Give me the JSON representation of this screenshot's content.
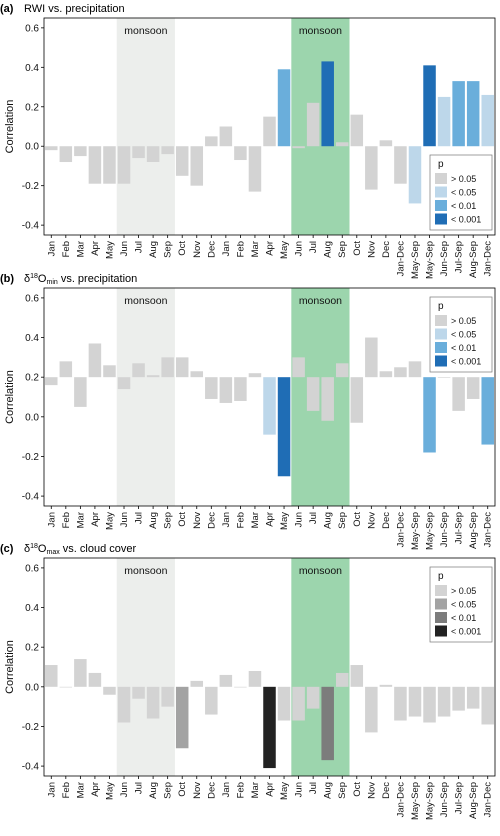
{
  "figure": {
    "panels_text": [
      "(a)",
      "(b)",
      "(c)"
    ]
  },
  "chart_data": [
    {
      "type": "bar",
      "panel_label": "(a)",
      "title": "RWI vs. precipitation",
      "ylabel": "Correlation",
      "ylim": [
        -0.45,
        0.65
      ],
      "yticks": [
        -0.4,
        -0.2,
        0.0,
        0.2,
        0.4,
        0.6
      ],
      "baseline": 0,
      "categories": [
        "Jan",
        "Feb",
        "Mar",
        "Apr",
        "May",
        "Jun",
        "Jul",
        "Aug",
        "Sep",
        "Oct",
        "Nov",
        "Dec",
        "Jan",
        "Feb",
        "Mar",
        "Apr",
        "May",
        "Jun",
        "Jul",
        "Aug",
        "Sep",
        "Oct",
        "Nov",
        "Dec",
        "Jan-Dec",
        "May-Sep",
        "May-Sep",
        "Jun-Sep",
        "Jul-Sep",
        "Aug-Sep",
        "Jan-Dec"
      ],
      "values": [
        -0.02,
        -0.08,
        -0.05,
        -0.19,
        -0.19,
        -0.19,
        -0.06,
        -0.08,
        -0.04,
        -0.15,
        -0.2,
        0.05,
        0.1,
        -0.07,
        -0.23,
        0.15,
        0.39,
        -0.01,
        0.22,
        0.43,
        0.02,
        0.16,
        -0.22,
        0.03,
        -0.19,
        -0.29,
        0.41,
        0.25,
        0.33,
        0.33,
        0.26
      ],
      "significance": [
        0,
        0,
        0,
        0,
        0,
        0,
        0,
        0,
        0,
        0,
        0,
        0,
        0,
        0,
        0,
        0,
        2,
        0,
        0,
        3,
        0,
        0,
        0,
        0,
        0,
        1,
        3,
        1,
        2,
        2,
        1
      ],
      "monsoon_bands": [
        {
          "label": "monsoon",
          "from": 5,
          "to": 9,
          "color": "#eceeec"
        },
        {
          "label": "monsoon",
          "from": 17,
          "to": 21,
          "color": "#9cd5ad"
        }
      ],
      "legend": {
        "title": "p",
        "position": "lower-right",
        "entries": [
          "> 0.05",
          "< 0.05",
          "< 0.01",
          "< 0.001"
        ],
        "colors": [
          "#d3d3d3",
          "#bdd7ea",
          "#6aaedb",
          "#1f6db5"
        ]
      }
    },
    {
      "type": "bar",
      "panel_label": "(b)",
      "title_parts": {
        "delta": "δ",
        "sup": "18",
        "main": "O",
        "sub": "min",
        "rest": " vs. precipitation"
      },
      "ylabel": "Correlation",
      "ylim": [
        -0.45,
        0.65
      ],
      "yticks": [
        -0.4,
        -0.2,
        0.0,
        0.2,
        0.4,
        0.6
      ],
      "baseline": 0.2,
      "categories": [
        "Jan",
        "Feb",
        "Mar",
        "Apr",
        "May",
        "Jun",
        "Jul",
        "Aug",
        "Sep",
        "Oct",
        "Nov",
        "Dec",
        "Jan",
        "Feb",
        "Mar",
        "Apr",
        "May",
        "Jun",
        "Jul",
        "Aug",
        "Sep",
        "Oct",
        "Nov",
        "Dec",
        "Jan-Dec",
        "May-Sep",
        "May-Sep",
        "Jun-Sep",
        "Jul-Sep",
        "Aug-Sep",
        "Jan-Dec"
      ],
      "values": [
        0.16,
        0.28,
        0.05,
        0.37,
        0.26,
        0.14,
        0.27,
        0.21,
        0.3,
        0.3,
        0.23,
        0.09,
        0.07,
        0.08,
        0.22,
        -0.09,
        -0.3,
        0.3,
        0.03,
        -0.02,
        0.27,
        -0.03,
        0.4,
        0.23,
        0.25,
        0.28,
        -0.18,
        0.2,
        0.03,
        0.09,
        -0.14
      ],
      "significance": [
        0,
        0,
        0,
        0,
        0,
        0,
        0,
        0,
        0,
        0,
        0,
        0,
        0,
        0,
        0,
        1,
        3,
        0,
        0,
        0,
        0,
        0,
        0,
        0,
        0,
        0,
        2,
        0,
        0,
        0,
        2
      ],
      "monsoon_bands": [
        {
          "label": "monsoon",
          "from": 5,
          "to": 9,
          "color": "#eceeec"
        },
        {
          "label": "monsoon",
          "from": 17,
          "to": 21,
          "color": "#9cd5ad"
        }
      ],
      "legend": {
        "title": "p",
        "position": "top-right",
        "entries": [
          "> 0.05",
          "< 0.05",
          "< 0.01",
          "< 0.001"
        ],
        "colors": [
          "#d3d3d3",
          "#bdd7ea",
          "#6aaedb",
          "#1f6db5"
        ]
      }
    },
    {
      "type": "bar",
      "panel_label": "(c)",
      "title_parts": {
        "delta": "δ",
        "sup": "18",
        "main": "O",
        "sub": "max",
        "rest": " vs. cloud cover"
      },
      "ylabel": "Correlation",
      "ylim": [
        -0.45,
        0.65
      ],
      "yticks": [
        -0.4,
        -0.2,
        0.0,
        0.2,
        0.4,
        0.6
      ],
      "baseline": 0,
      "categories": [
        "Jan",
        "Feb",
        "Mar",
        "Apr",
        "May",
        "Jun",
        "Jul",
        "Aug",
        "Sep",
        "Oct",
        "Nov",
        "Dec",
        "Jan",
        "Feb",
        "Mar",
        "Apr",
        "May",
        "Jun",
        "Jul",
        "Aug",
        "Sep",
        "Oct",
        "Nov",
        "Dec",
        "Jan-Dec",
        "May-Sep",
        "May-Sep",
        "Jun-Sep",
        "Jul-Sep",
        "Aug-Sep",
        "Jan-Dec"
      ],
      "values": [
        0.11,
        0.0,
        0.14,
        0.07,
        -0.04,
        -0.18,
        -0.06,
        -0.16,
        -0.1,
        -0.31,
        0.03,
        -0.14,
        0.06,
        0.0,
        0.08,
        -0.41,
        -0.17,
        -0.17,
        -0.11,
        -0.37,
        0.07,
        0.11,
        -0.23,
        0.01,
        -0.17,
        -0.15,
        -0.18,
        -0.15,
        -0.12,
        -0.11,
        -0.19
      ],
      "significance": [
        0,
        0,
        0,
        0,
        0,
        0,
        0,
        0,
        0,
        1,
        0,
        0,
        0,
        0,
        0,
        3,
        0,
        0,
        0,
        2,
        0,
        0,
        0,
        0,
        0,
        0,
        0,
        0,
        0,
        0,
        0
      ],
      "monsoon_bands": [
        {
          "label": "monsoon",
          "from": 5,
          "to": 9,
          "color": "#eceeec"
        },
        {
          "label": "monsoon",
          "from": 17,
          "to": 21,
          "color": "#9cd5ad"
        }
      ],
      "legend": {
        "title": "p",
        "position": "top-right",
        "entries": [
          "> 0.05",
          "< 0.05",
          "< 0.01",
          "< 0.001"
        ],
        "colors": [
          "#d3d3d3",
          "#a3a3a3",
          "#7c7c7c",
          "#222222"
        ]
      }
    }
  ]
}
